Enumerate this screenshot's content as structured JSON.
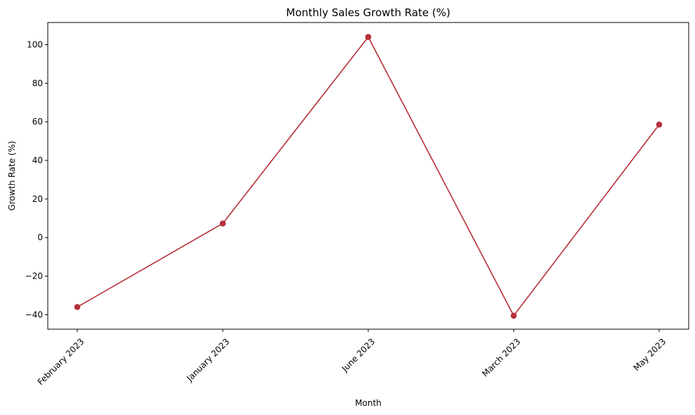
{
  "chart_data": {
    "type": "line",
    "title": "Monthly Sales Growth Rate (%)",
    "xlabel": "Month",
    "ylabel": "Growth Rate (%)",
    "categories": [
      "February 2023",
      "January 2023",
      "June 2023",
      "March 2023",
      "May 2023"
    ],
    "series": [
      {
        "values": [
          -36.0,
          7.3,
          104.0,
          -40.5,
          58.6
        ],
        "color": "#b5303a",
        "marker": "circle"
      }
    ],
    "ylim": [
      -47.5,
      111.5
    ],
    "yticks": [
      -40,
      -20,
      0,
      20,
      40,
      60,
      80,
      100
    ],
    "ytick_labels": [
      "−40",
      "−20",
      "0",
      "20",
      "40",
      "60",
      "80",
      "100"
    ],
    "grid": false,
    "legend": "none"
  }
}
